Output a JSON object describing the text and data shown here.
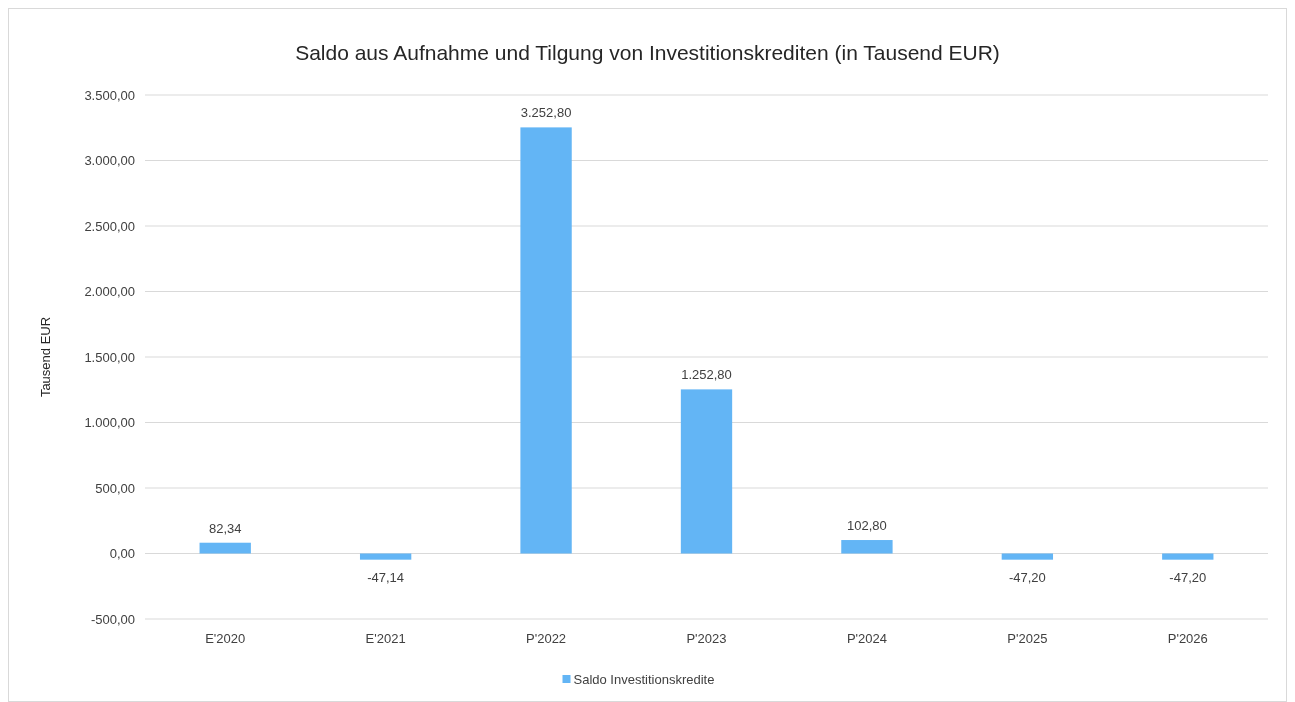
{
  "chart_data": {
    "type": "bar",
    "title": "Saldo aus Aufnahme und Tilgung von Investitionskrediten (in Tausend EUR)",
    "ylabel": "Tausend EUR",
    "categories": [
      "E'2020",
      "E'2021",
      "P'2022",
      "P'2023",
      "P'2024",
      "P'2025",
      "P'2026"
    ],
    "series": [
      {
        "name": "Saldo Investitionskredite",
        "color": "#63b5f5",
        "values": [
          82.34,
          -47.14,
          3252.8,
          1252.8,
          102.8,
          -47.2,
          -47.2
        ],
        "value_labels": [
          "82,34",
          "-47,14",
          "3.252,80",
          "1.252,80",
          "102,80",
          "-47,20",
          "-47,20"
        ]
      }
    ],
    "ylim": [
      -500,
      3500
    ],
    "yticks": [
      {
        "value": -500,
        "label": "-500,00"
      },
      {
        "value": 0,
        "label": "0,00"
      },
      {
        "value": 500,
        "label": "500,00"
      },
      {
        "value": 1000,
        "label": "1.000,00"
      },
      {
        "value": 1500,
        "label": "1.500,00"
      },
      {
        "value": 2000,
        "label": "2.000,00"
      },
      {
        "value": 2500,
        "label": "2.500,00"
      },
      {
        "value": 3000,
        "label": "3.000,00"
      },
      {
        "value": 3500,
        "label": "3.500,00"
      }
    ],
    "grid": "y",
    "legend": "bottom"
  }
}
